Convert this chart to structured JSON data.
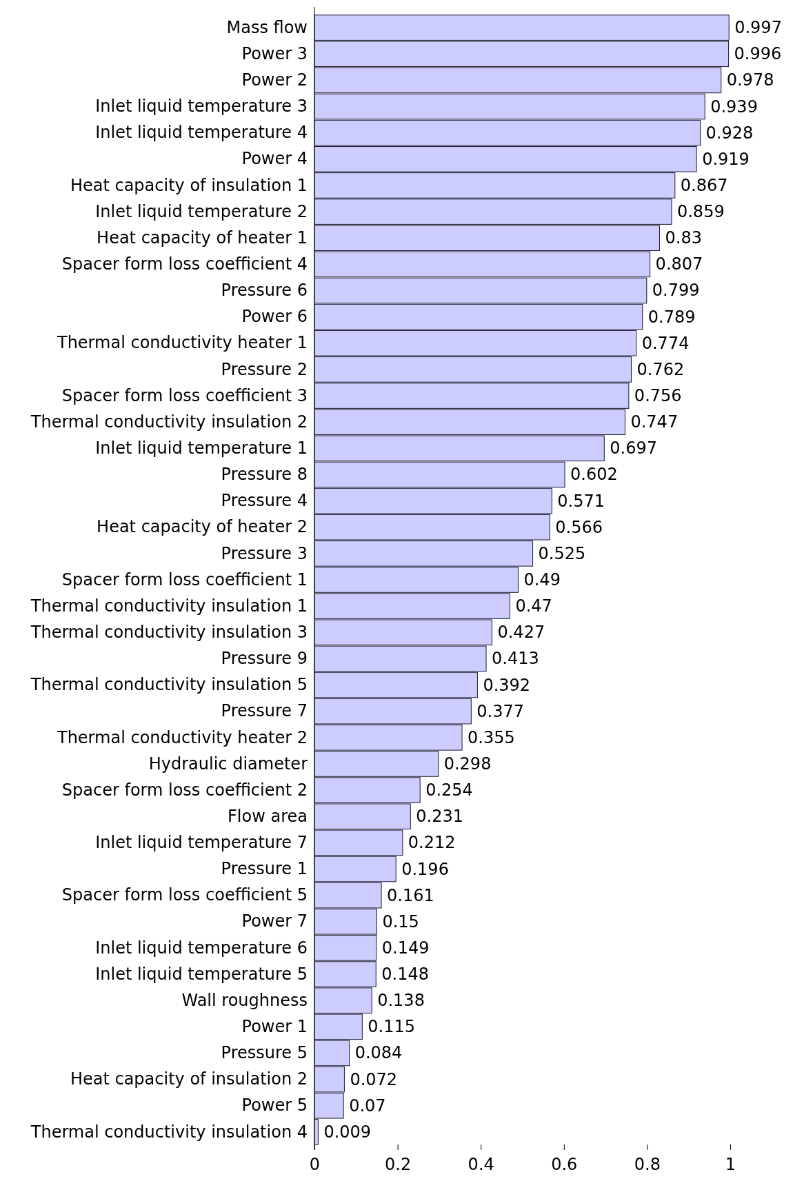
{
  "chart_data": {
    "type": "bar",
    "orientation": "horizontal",
    "categories": [
      "Mass flow",
      "Power 3",
      "Power 2",
      "Inlet liquid temperature 3",
      "Inlet liquid temperature 4",
      "Power 4",
      "Heat capacity of insulation 1",
      "Inlet liquid temperature 2",
      "Heat capacity of heater 1",
      "Spacer form loss coefficient 4",
      "Pressure 6",
      "Power 6",
      "Thermal conductivity heater 1",
      "Pressure 2",
      "Spacer form loss coefficient 3",
      "Thermal conductivity insulation 2",
      "Inlet liquid temperature 1",
      "Pressure 8",
      "Pressure 4",
      "Heat capacity of heater 2",
      "Pressure 3",
      "Spacer form loss coefficient 1",
      "Thermal conductivity insulation 1",
      "Thermal conductivity insulation 3",
      "Pressure 9",
      "Thermal conductivity insulation 5",
      "Pressure 7",
      "Thermal conductivity heater 2",
      "Hydraulic diameter",
      "Spacer form loss coefficient 2",
      "Flow area",
      "Inlet liquid temperature 7",
      "Pressure 1",
      "Spacer form loss coefficient 5",
      "Power 7",
      "Inlet liquid temperature 6",
      "Inlet liquid temperature 5",
      "Wall roughness",
      "Power 1",
      "Pressure 5",
      "Heat capacity of insulation 2",
      "Power 5",
      "Thermal conductivity insulation 4"
    ],
    "values": [
      0.997,
      0.996,
      0.978,
      0.939,
      0.928,
      0.919,
      0.867,
      0.859,
      0.83,
      0.807,
      0.799,
      0.789,
      0.774,
      0.762,
      0.756,
      0.747,
      0.697,
      0.602,
      0.571,
      0.566,
      0.525,
      0.49,
      0.47,
      0.427,
      0.413,
      0.392,
      0.377,
      0.355,
      0.298,
      0.254,
      0.231,
      0.212,
      0.196,
      0.161,
      0.15,
      0.149,
      0.148,
      0.138,
      0.115,
      0.084,
      0.072,
      0.07,
      0.009
    ],
    "color": "#ccccff",
    "data_labels": true,
    "xlim": [
      0,
      1
    ],
    "xticks": [
      0,
      0.2,
      0.4,
      0.6,
      0.8,
      1
    ]
  }
}
